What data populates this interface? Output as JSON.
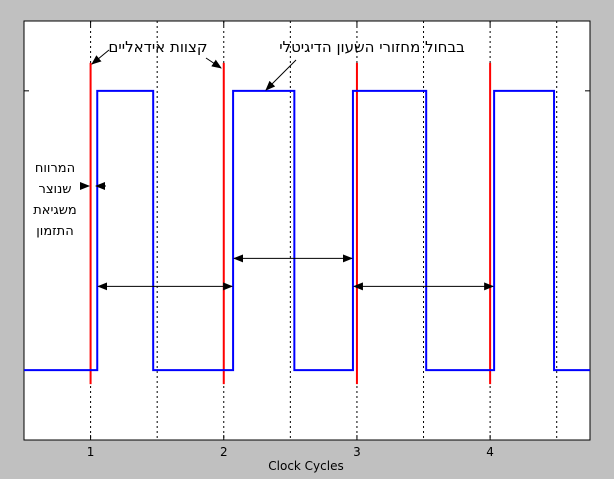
{
  "chart_data": {
    "type": "line",
    "xlabel": "Clock Cycles",
    "x_ticks": [
      1,
      2,
      3,
      4
    ],
    "xlim": [
      0.5,
      4.75
    ],
    "ylim": [
      -0.25,
      1.25
    ],
    "grid": "vertical dotted at half-cycle marks",
    "series": [
      {
        "color": "#0000ff",
        "x": [
          0.5,
          1.05,
          1.05,
          1.47,
          1.47,
          2.07,
          2.07,
          2.53,
          2.53,
          2.97,
          2.97,
          3.52,
          3.52,
          4.03,
          4.03,
          4.48,
          4.48,
          4.75
        ],
        "y": [
          0,
          0,
          1,
          1,
          0,
          0,
          1,
          1,
          0,
          0,
          1,
          1,
          0,
          0,
          1,
          1,
          0,
          0
        ]
      }
    ],
    "ideal_edges": {
      "color": "#ff0000",
      "x": [
        1,
        2,
        3,
        4
      ],
      "y_range": [
        -0.05,
        1.1
      ]
    },
    "period_arrows": [
      {
        "x0": 1.05,
        "x1": 2.07,
        "y": 0.3
      },
      {
        "x0": 2.07,
        "x1": 2.97,
        "y": 0.4
      },
      {
        "x0": 2.97,
        "x1": 4.03,
        "y": 0.3
      }
    ],
    "annotations": {
      "ideal_edges": "קצוות אידאליים",
      "digital_signal": "בבחול מחזורי השעון הדיגיטלי",
      "jitter_line1": "המרווח",
      "jitter_line2": "שנוצר",
      "jitter_line3": "משגיאת",
      "jitter_line4": "התזמון"
    }
  }
}
